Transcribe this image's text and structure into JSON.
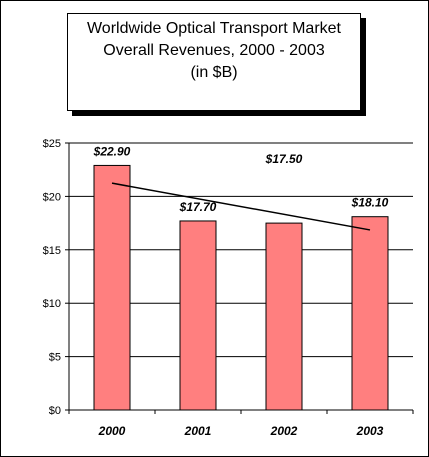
{
  "chart_data": {
    "type": "bar",
    "title_lines": [
      "Worldwide Optical Transport Market",
      "Overall Revenues, 2000 - 2003",
      "(in $B)"
    ],
    "categories": [
      "2000",
      "2001",
      "2002",
      "2003"
    ],
    "values": [
      22.9,
      17.7,
      17.5,
      18.1
    ],
    "data_labels": [
      "$22.90",
      "$17.70",
      "$17.50",
      "$18.10"
    ],
    "yticks": [
      "$0",
      "$5",
      "$10",
      "$15",
      "$20",
      "$25"
    ],
    "ylim": [
      0,
      25
    ],
    "ytick_step": 5,
    "trendline": true,
    "grid": true,
    "legend": "none",
    "xlabel": "",
    "ylabel": "",
    "colors": {
      "bar": "#FF7F7F",
      "bar_edge": "#000000",
      "grid": "#000000",
      "trend": "#000000"
    }
  }
}
